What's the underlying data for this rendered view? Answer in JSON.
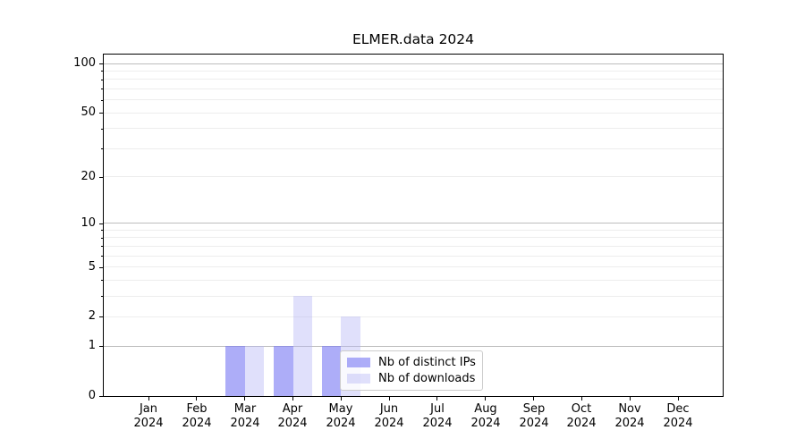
{
  "figure": {
    "background": "#ffffff",
    "spine_color": "#000000",
    "grid_major_color": "#bdbdbd",
    "grid_minor_color": "#ededed",
    "text_color": "#000000"
  },
  "chart_data": {
    "type": "bar",
    "title": "ELMER.data 2024",
    "xlabel": "",
    "ylabel": "",
    "yscale": "log1p",
    "ylim": [
      0,
      100
    ],
    "grid": true,
    "y_tick_labels": [
      "0",
      "1",
      "2",
      "5",
      "10",
      "20",
      "50",
      "100"
    ],
    "y_tick_values": [
      0,
      1,
      2,
      5,
      10,
      20,
      50,
      100
    ],
    "y_major_gridline_values": [
      1,
      10,
      100
    ],
    "y_minor_gridline_values": [
      2,
      3,
      4,
      5,
      6,
      7,
      8,
      9,
      20,
      30,
      40,
      50,
      60,
      70,
      80,
      90
    ],
    "categories": [
      {
        "month": "Jan",
        "year": "2024"
      },
      {
        "month": "Feb",
        "year": "2024"
      },
      {
        "month": "Mar",
        "year": "2024"
      },
      {
        "month": "Apr",
        "year": "2024"
      },
      {
        "month": "May",
        "year": "2024"
      },
      {
        "month": "Jun",
        "year": "2024"
      },
      {
        "month": "Jul",
        "year": "2024"
      },
      {
        "month": "Aug",
        "year": "2024"
      },
      {
        "month": "Sep",
        "year": "2024"
      },
      {
        "month": "Oct",
        "year": "2024"
      },
      {
        "month": "Nov",
        "year": "2024"
      },
      {
        "month": "Dec",
        "year": "2024"
      }
    ],
    "series": [
      {
        "name": "Nb of distinct IPs",
        "color_hex": "#a9a9f7",
        "fill": "rgba(122,122,243,0.62)",
        "values": [
          0,
          0,
          1,
          1,
          1,
          0,
          0,
          0,
          0,
          0,
          0,
          0
        ]
      },
      {
        "name": "Nb of downloads",
        "color_hex": "#dcdcf9",
        "fill": "rgba(182,182,246,0.42)",
        "values": [
          0,
          0,
          1,
          3,
          2,
          0,
          0,
          0,
          0,
          0,
          0,
          0
        ]
      }
    ],
    "legend": {
      "position": "lower-right-inside",
      "border_color": "#cccccc",
      "background": "rgba(255,255,255,0.8)"
    }
  }
}
